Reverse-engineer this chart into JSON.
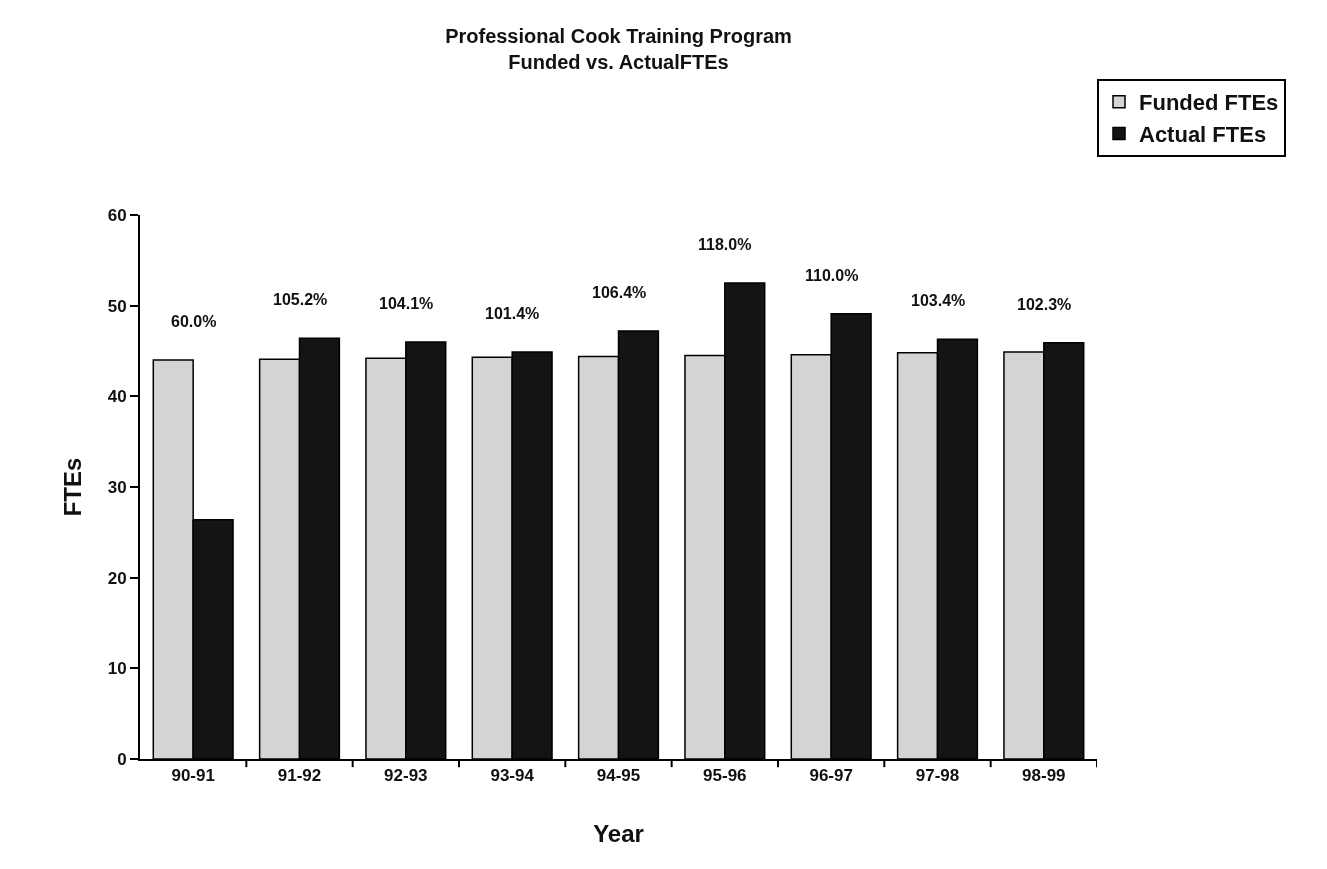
{
  "chart_data": {
    "type": "bar",
    "title": "Professional Cook Training Program",
    "subtitle": "Funded vs. ActualFTEs",
    "xlabel": "Year",
    "ylabel": "FTEs",
    "categories": [
      "90-91",
      "91-92",
      "92-93",
      "93-94",
      "94-95",
      "95-96",
      "96-97",
      "97-98",
      "98-99"
    ],
    "series": [
      {
        "name": "Funded FTEs",
        "color": "#d4d4d4",
        "values": [
          44.0,
          44.1,
          44.2,
          44.3,
          44.4,
          44.5,
          44.6,
          44.8,
          44.9
        ]
      },
      {
        "name": "Actual FTEs",
        "color": "#141414",
        "values": [
          26.4,
          46.4,
          46.0,
          44.9,
          47.2,
          52.5,
          49.1,
          46.3,
          45.9
        ]
      }
    ],
    "annotations": [
      {
        "text": "60.0%",
        "x": "90-91",
        "y": 44.0
      },
      {
        "text": "105.2%",
        "x": "91-92",
        "y": 46.4
      },
      {
        "text": "104.1%",
        "x": "92-93",
        "y": 46.0
      },
      {
        "text": "101.4%",
        "x": "93-94",
        "y": 44.9
      },
      {
        "text": "106.4%",
        "x": "94-95",
        "y": 47.2
      },
      {
        "text": "118.0%",
        "x": "95-96",
        "y": 52.5
      },
      {
        "text": "110.0%",
        "x": "96-97",
        "y": 49.1
      },
      {
        "text": "103.4%",
        "x": "97-98",
        "y": 46.3
      },
      {
        "text": "102.3%",
        "x": "98-99",
        "y": 45.9
      }
    ],
    "ylim": [
      0,
      60
    ],
    "yticks": [
      0,
      10,
      20,
      30,
      40,
      50,
      60
    ],
    "grid": false,
    "legend": "top right"
  }
}
